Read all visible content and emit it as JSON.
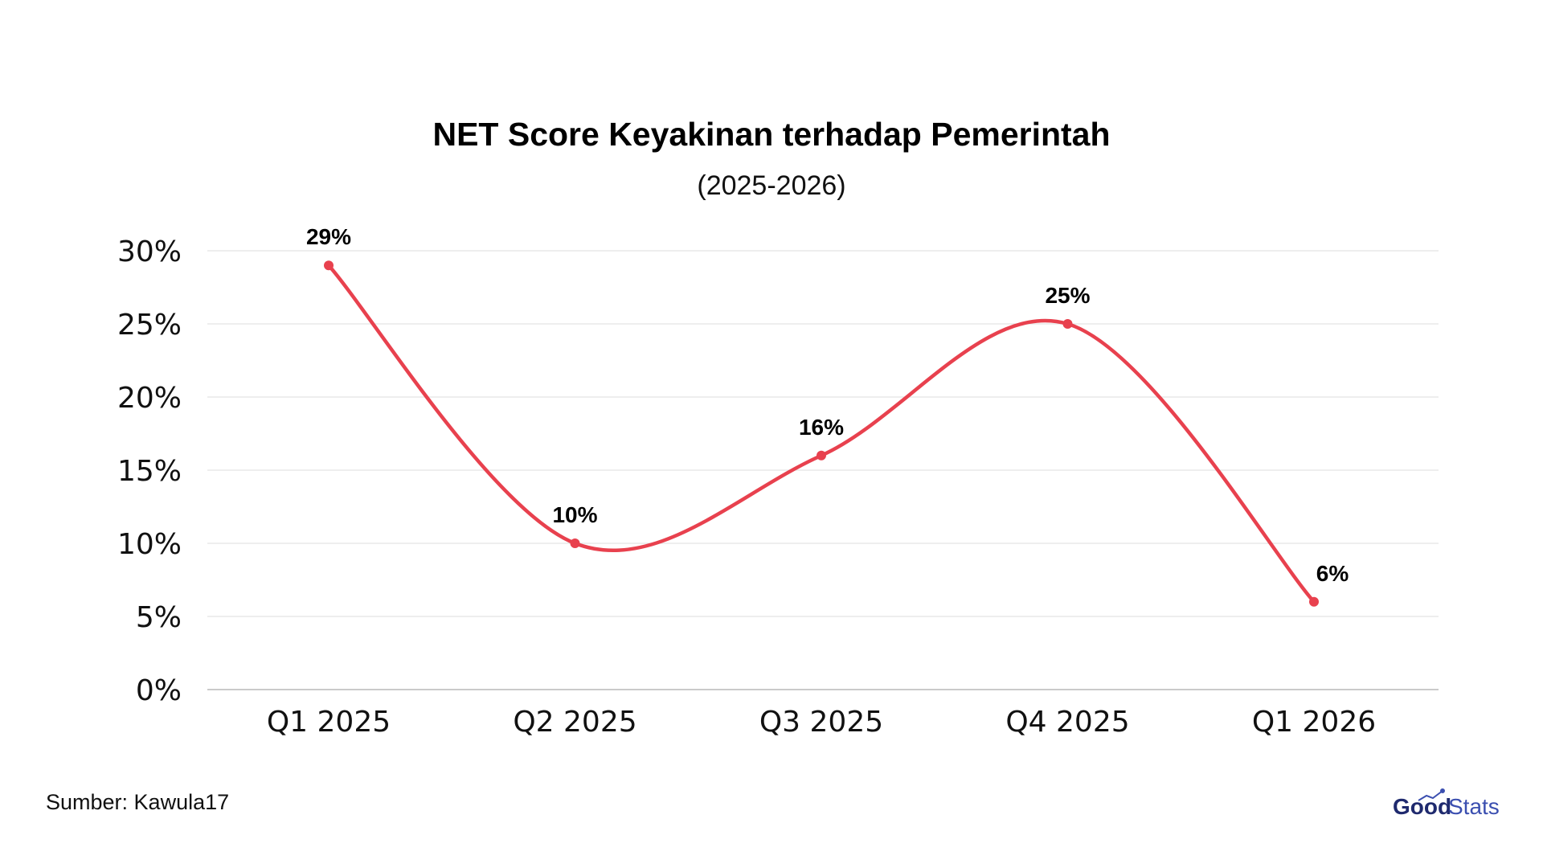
{
  "chart_data": {
    "type": "line",
    "title": "NET Score Keyakinan terhadap Pemerintah",
    "subtitle": "(2025-2026)",
    "categories": [
      "Q1 2025",
      "Q2 2025",
      "Q3 2025",
      "Q4 2025",
      "Q1 2026"
    ],
    "series": [
      {
        "values": [
          29,
          10,
          16,
          25,
          6
        ],
        "data_labels": [
          "29%",
          "10%",
          "16%",
          "25%",
          "6%"
        ],
        "color": "#e8414e"
      }
    ],
    "ylim": [
      0,
      30
    ],
    "yticks": [
      0,
      5,
      10,
      15,
      20,
      25,
      30
    ],
    "ytick_labels": [
      "0%",
      "5%",
      "10%",
      "15%",
      "20%",
      "25%",
      "30%"
    ],
    "grid": true,
    "smooth": true
  },
  "footer": {
    "source": "Sumber: Kawula17",
    "brand_part1": "Good",
    "brand_part2": "Stats"
  },
  "colors": {
    "line": "#e8414e",
    "gridline": "#e3e3e3",
    "baseline": "#b8b8b8",
    "brand_dark": "#1f2a6e",
    "brand_light": "#3b4fb0"
  }
}
